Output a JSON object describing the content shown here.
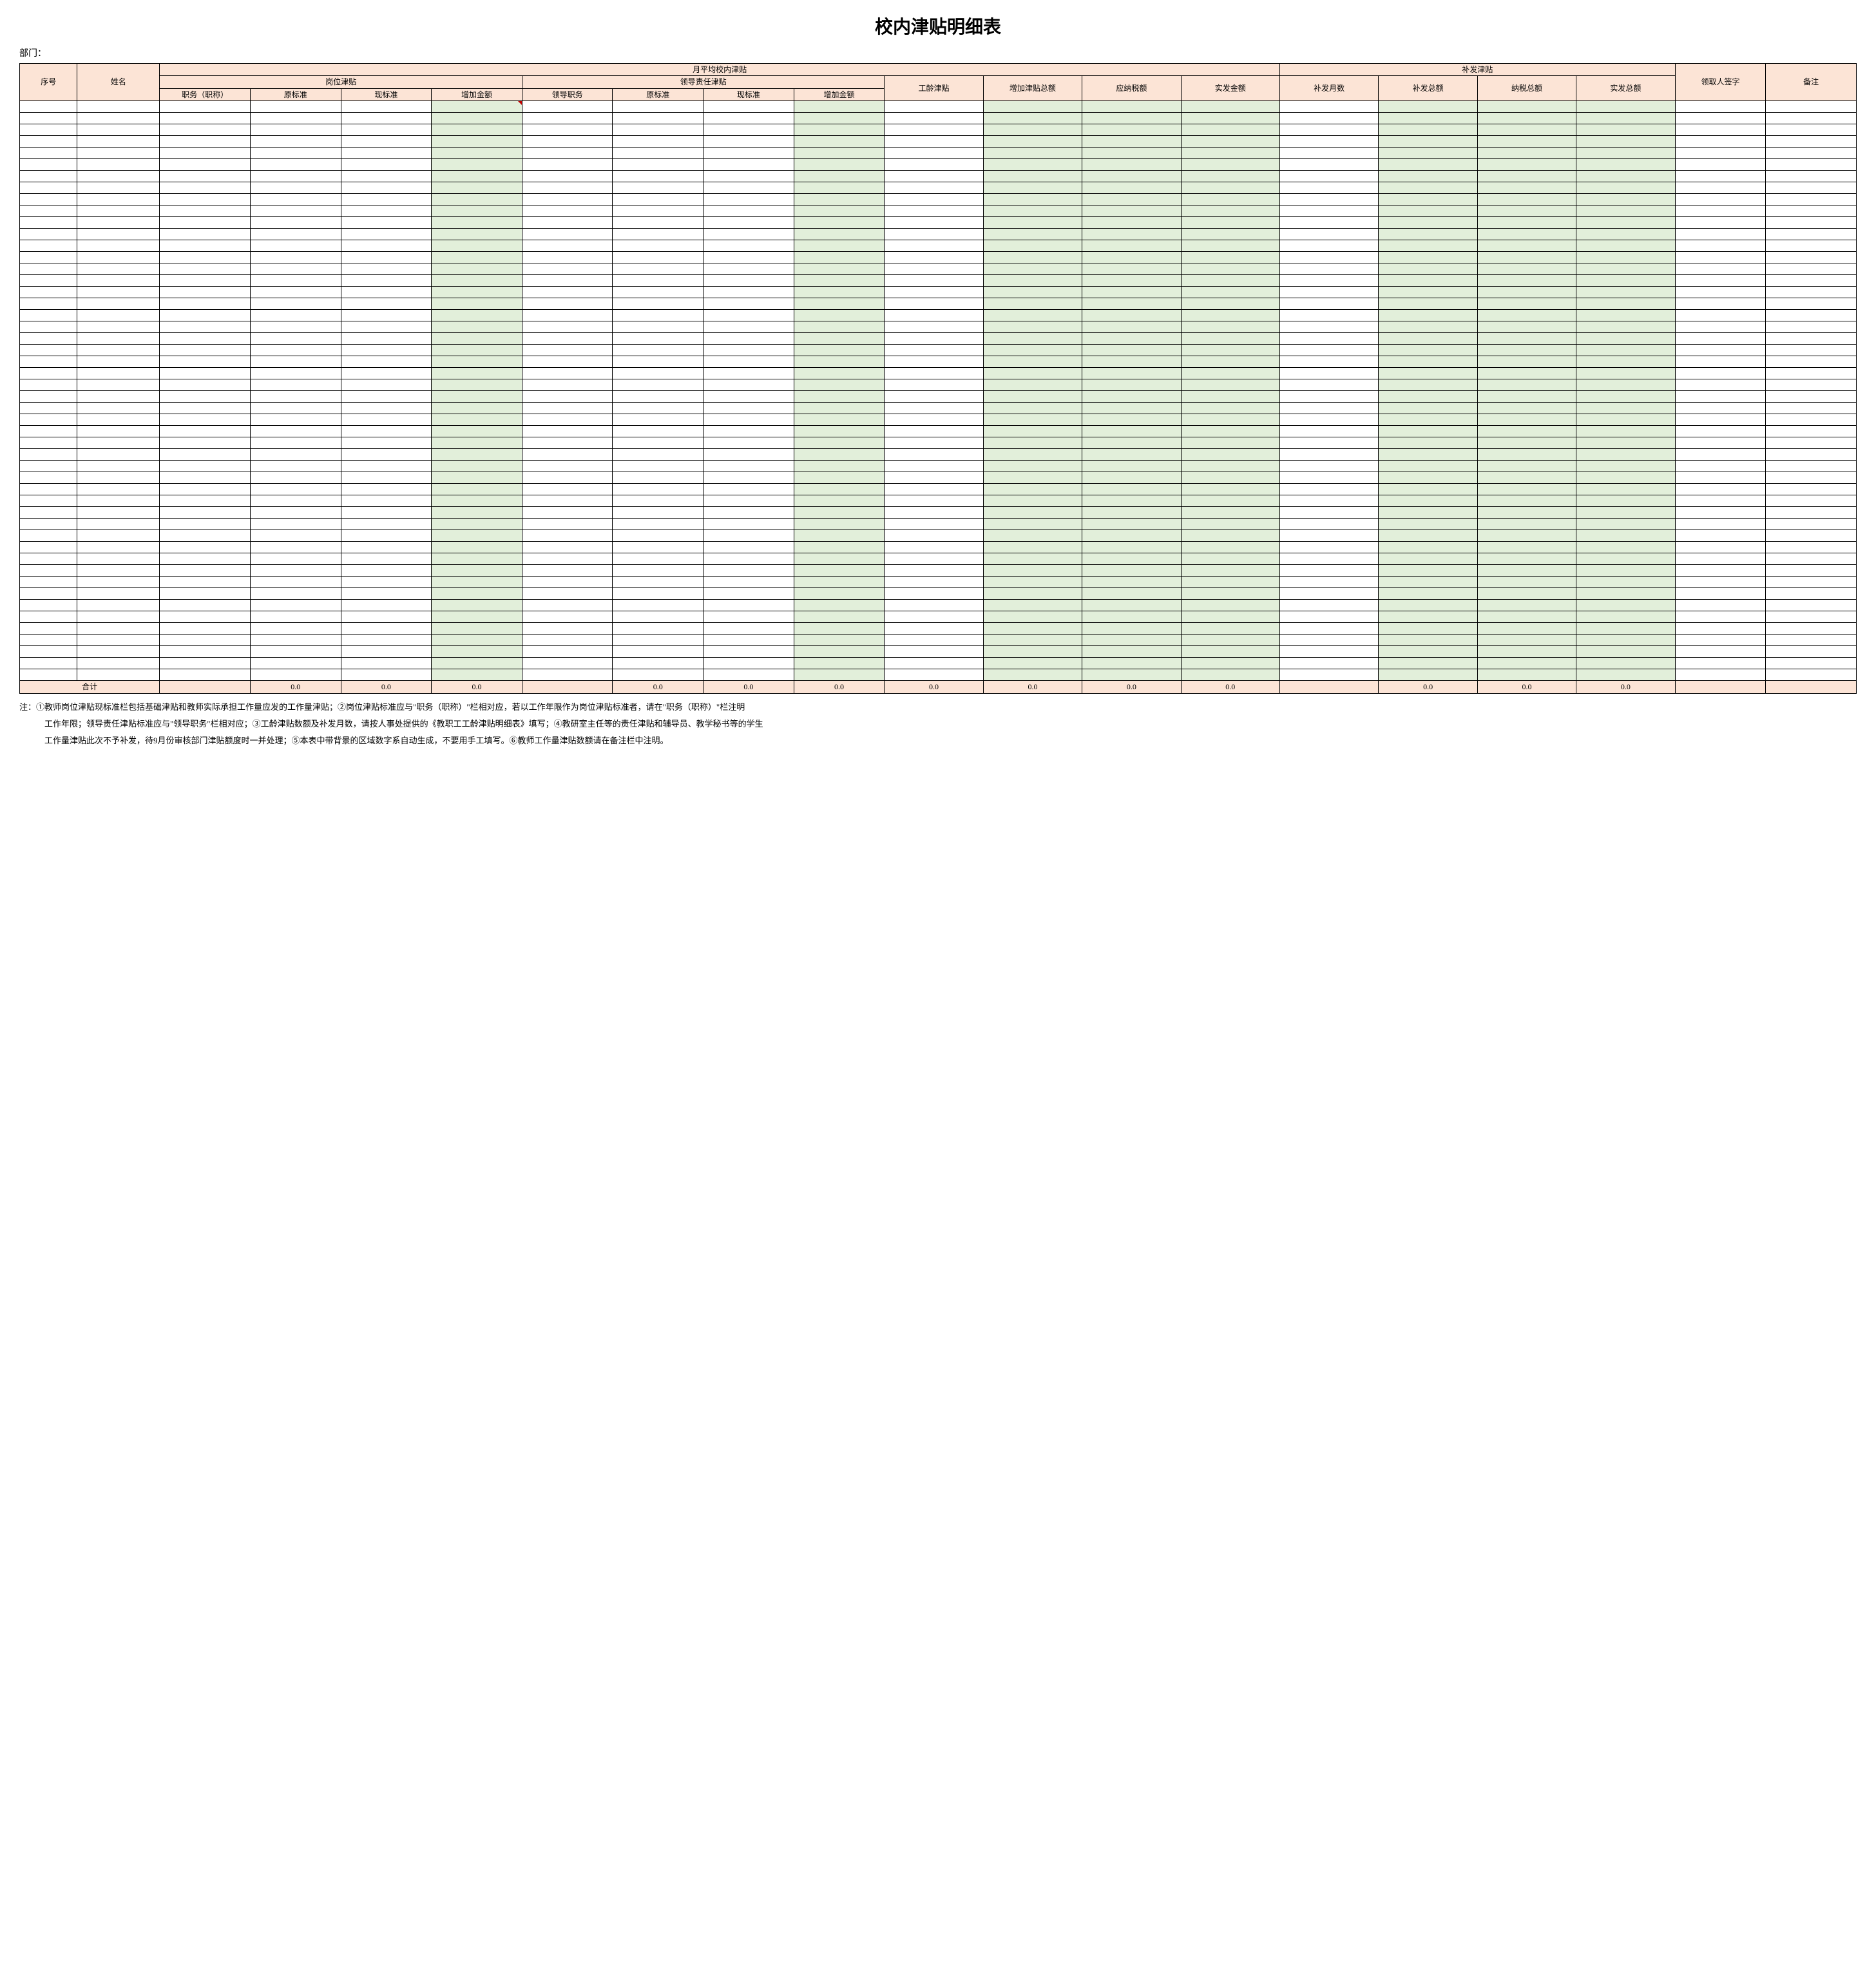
{
  "title": "校内津贴明细表",
  "dept_label": "部门：",
  "colors": {
    "header_bg": "#fce4d6",
    "calc_bg": "#e2efda",
    "border": "#000000",
    "triangle": "#c00000"
  },
  "header": {
    "seq": "序号",
    "name": "姓名",
    "monthly_group": "月平均校内津贴",
    "supp_group": "补发津贴",
    "sign": "领取人签字",
    "remark": "备注",
    "post_group": "岗位津贴",
    "lead_group": "领导责任津贴",
    "seniority": "工龄津贴",
    "add_total": "增加津贴总额",
    "tax_payable": "应纳税额",
    "actual_amount": "实发金额",
    "supp_months": "补发月数",
    "supp_total": "补发总额",
    "tax_total": "纳税总额",
    "actual_total": "实发总额",
    "post_title": "职务（职称）",
    "orig_std": "原标准",
    "curr_std": "现标准",
    "add_amount": "增加金额",
    "lead_title": "领导职务"
  },
  "row_count": 50,
  "totals": {
    "label": "合计",
    "values": {
      "orig_std": "0.0",
      "curr_std": "0.0",
      "add_amount": "0.0",
      "lead_orig": "0.0",
      "lead_curr": "0.0",
      "lead_add": "0.0",
      "seniority": "0.0",
      "add_total": "0.0",
      "tax_payable": "0.0",
      "actual_amount": "0.0",
      "supp_total": "0.0",
      "tax_total": "0.0",
      "actual_total": "0.0"
    }
  },
  "footnote": {
    "prefix": "注：",
    "line1": "①教师岗位津贴现标准栏包括基础津贴和教师实际承担工作量应发的工作量津贴；②岗位津贴标准应与\"职务（职称）\"栏相对应，若以工作年限作为岗位津贴标准者，请在\"职务（职称）\"栏注明",
    "line2": "工作年限；领导责任津贴标准应与\"领导职务\"栏相对应；③工龄津贴数额及补发月数，请按人事处提供的《教职工工龄津贴明细表》填写；④教研室主任等的责任津贴和辅导员、教学秘书等的学生",
    "line3": "工作量津贴此次不予补发，待9月份审核部门津贴额度时一并处理；⑤本表中带背景的区域数字系自动生成，不要用手工填写。⑥教师工作量津贴数额请在备注栏中注明。"
  }
}
